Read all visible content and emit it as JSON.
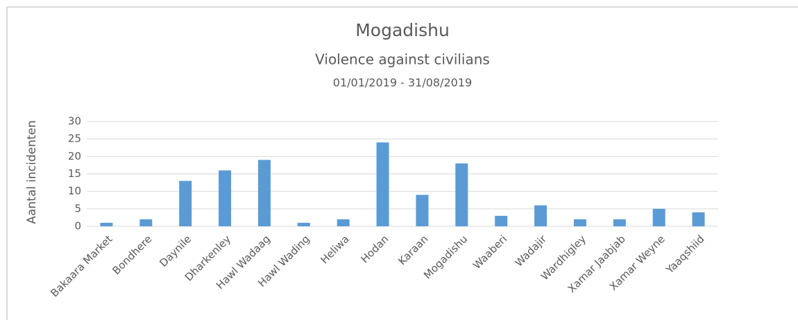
{
  "chart_data": {
    "type": "bar",
    "title": "Mogadishu",
    "subtitle": "Violence against civilians",
    "date_range": "01/01/2019 - 31/08/2019",
    "y_label": "Aantal incidenten",
    "categories": [
      "Bakaara Market",
      "Bondhere",
      "Daynile",
      "Dharkenley",
      "Hawl Wadaag",
      "Hawl Wading",
      "Heliwa",
      "Hodan",
      "Karaan",
      "Mogadishu",
      "Waaberi",
      "Wadajir",
      "Wardhigley",
      "Xamar Jaabjab",
      "Xamar Weyne",
      "Yaaqshiid"
    ],
    "values": [
      1,
      2,
      13,
      16,
      19,
      1,
      2,
      24,
      9,
      18,
      3,
      6,
      2,
      2,
      5,
      4
    ],
    "color": "#5b9bd5",
    "ylim": [
      0,
      30
    ],
    "yticks": [
      0,
      5,
      10,
      15,
      20,
      25,
      30
    ],
    "grid": true
  }
}
